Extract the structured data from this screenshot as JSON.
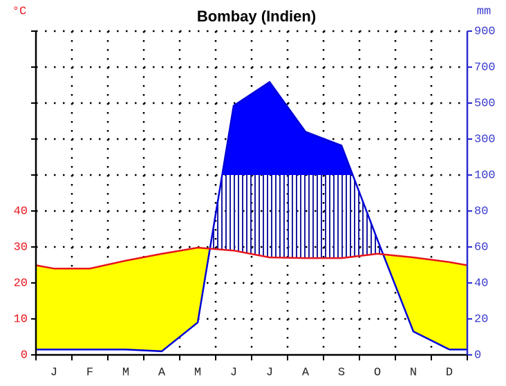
{
  "chart_data": {
    "type": "climate",
    "title": "Bombay (Indien)",
    "y_unit": "°C",
    "y2_unit": "mm",
    "categories": [
      "J",
      "F",
      "M",
      "A",
      "M",
      "J",
      "J",
      "A",
      "S",
      "O",
      "N",
      "D"
    ],
    "series": [
      {
        "color": "#e8141c",
        "values": [
          24.0,
          24.0,
          26.2,
          28.1,
          29.8,
          29.0,
          27.1,
          26.9,
          26.9,
          28.1,
          27.1,
          25.8
        ]
      },
      {
        "axis": "y2",
        "color": "#0000d8",
        "values": [
          3,
          3,
          3,
          2,
          18,
          485,
          617,
          340,
          264,
          64,
          13,
          3
        ]
      }
    ],
    "yticks": [
      0,
      10,
      20,
      30,
      40
    ],
    "y2lim": [
      0,
      900
    ],
    "y2ticks": [
      0,
      20,
      40,
      60,
      80,
      100,
      300,
      500,
      700,
      900
    ],
    "dry_color": "#ffff00",
    "wet_color": "#0000ff",
    "hatch_color": "#1a1aa0",
    "grid": true
  }
}
